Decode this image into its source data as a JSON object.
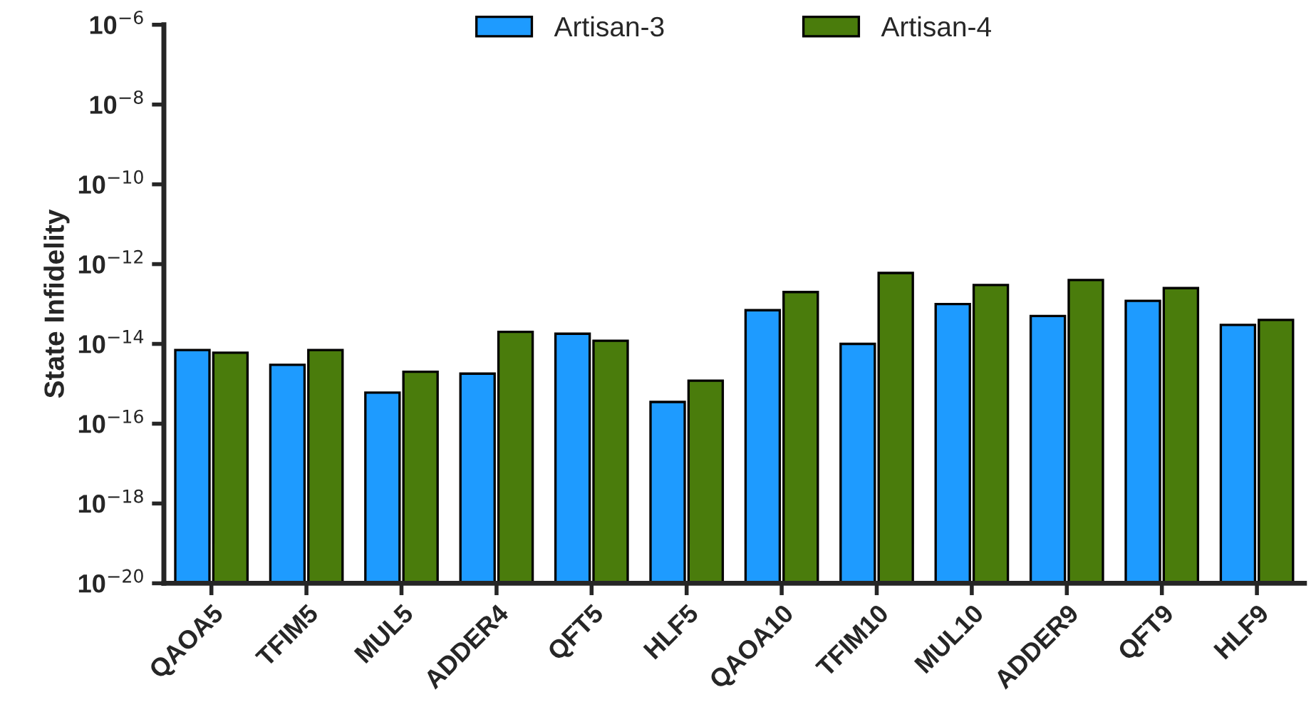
{
  "chart_data": {
    "type": "bar",
    "ylabel": "State Infidelity",
    "log": true,
    "categories": [
      "QAOA5",
      "TFIM5",
      "MUL5",
      "ADDER4",
      "QFT5",
      "HLF5",
      "QAOA10",
      "TFIM10",
      "MUL10",
      "ADDER9",
      "QFT9",
      "HLF9"
    ],
    "series": [
      {
        "name": "Artisan-3",
        "color": "#1e9bff",
        "values": [
          7e-15,
          3e-15,
          6e-16,
          1.8e-15,
          1.8e-14,
          3.5e-16,
          7e-14,
          1e-14,
          1e-13,
          5e-14,
          1.2e-13,
          3e-14
        ]
      },
      {
        "name": "Artisan-4",
        "color": "#4a7c0c",
        "values": [
          6e-15,
          7e-15,
          2e-15,
          2e-14,
          1.2e-14,
          1.2e-15,
          2e-13,
          6e-13,
          3e-13,
          4e-13,
          2.5e-13,
          4e-14
        ]
      }
    ],
    "ylim": [
      1e-20,
      1e-06
    ],
    "yticks": [
      {
        "value": 1e-20,
        "label": "10$^{−20}$"
      },
      {
        "value": 1e-18,
        "label": "10$^{−18}$"
      },
      {
        "value": 1e-16,
        "label": "10$^{−16}$"
      },
      {
        "value": 1e-14,
        "label": "10$^{−14}$"
      },
      {
        "value": 1e-12,
        "label": "10$^{−12}$"
      },
      {
        "value": 1e-10,
        "label": "10$^{−10}$"
      },
      {
        "value": 1e-08,
        "label": "10$^{−8}$"
      },
      {
        "value": 1e-06,
        "label": "10$^{−6}$"
      }
    ],
    "legend": "top",
    "grid": false
  }
}
